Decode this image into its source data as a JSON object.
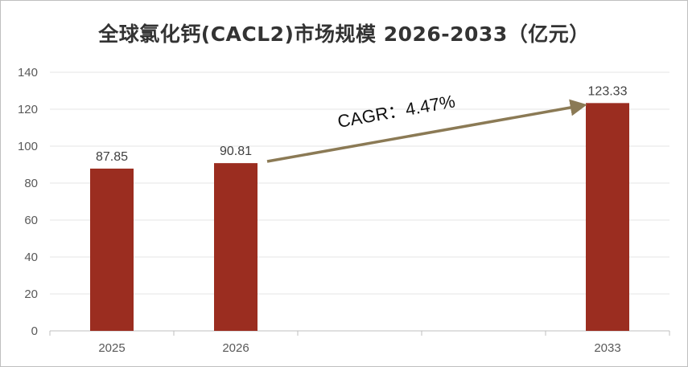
{
  "title": "全球氯化钙(CACL2)市场规模 2026-2033（亿元）",
  "colors": {
    "bar": "#9b2d20",
    "arrow": "#8b7a55",
    "grid": "#e6e6e6",
    "axis": "#bfbfbf"
  },
  "chart_data": {
    "type": "bar",
    "categories": [
      "2025",
      "2026",
      "",
      "",
      "2033"
    ],
    "values": [
      87.85,
      90.81,
      null,
      null,
      123.33
    ],
    "data_labels": [
      "87.85",
      "90.81",
      "",
      "",
      "123.33"
    ],
    "title": "全球氯化钙(CACL2)市场规模 2026-2033（亿元）",
    "xlabel": "",
    "ylabel": "",
    "ylim": [
      0,
      140
    ],
    "yticks": [
      0,
      20,
      40,
      60,
      80,
      100,
      120,
      140
    ],
    "grid": true,
    "legend": "none",
    "annotation": {
      "text": "CAGR：4.47%",
      "from_category": "2026",
      "to_category": "2033"
    }
  }
}
